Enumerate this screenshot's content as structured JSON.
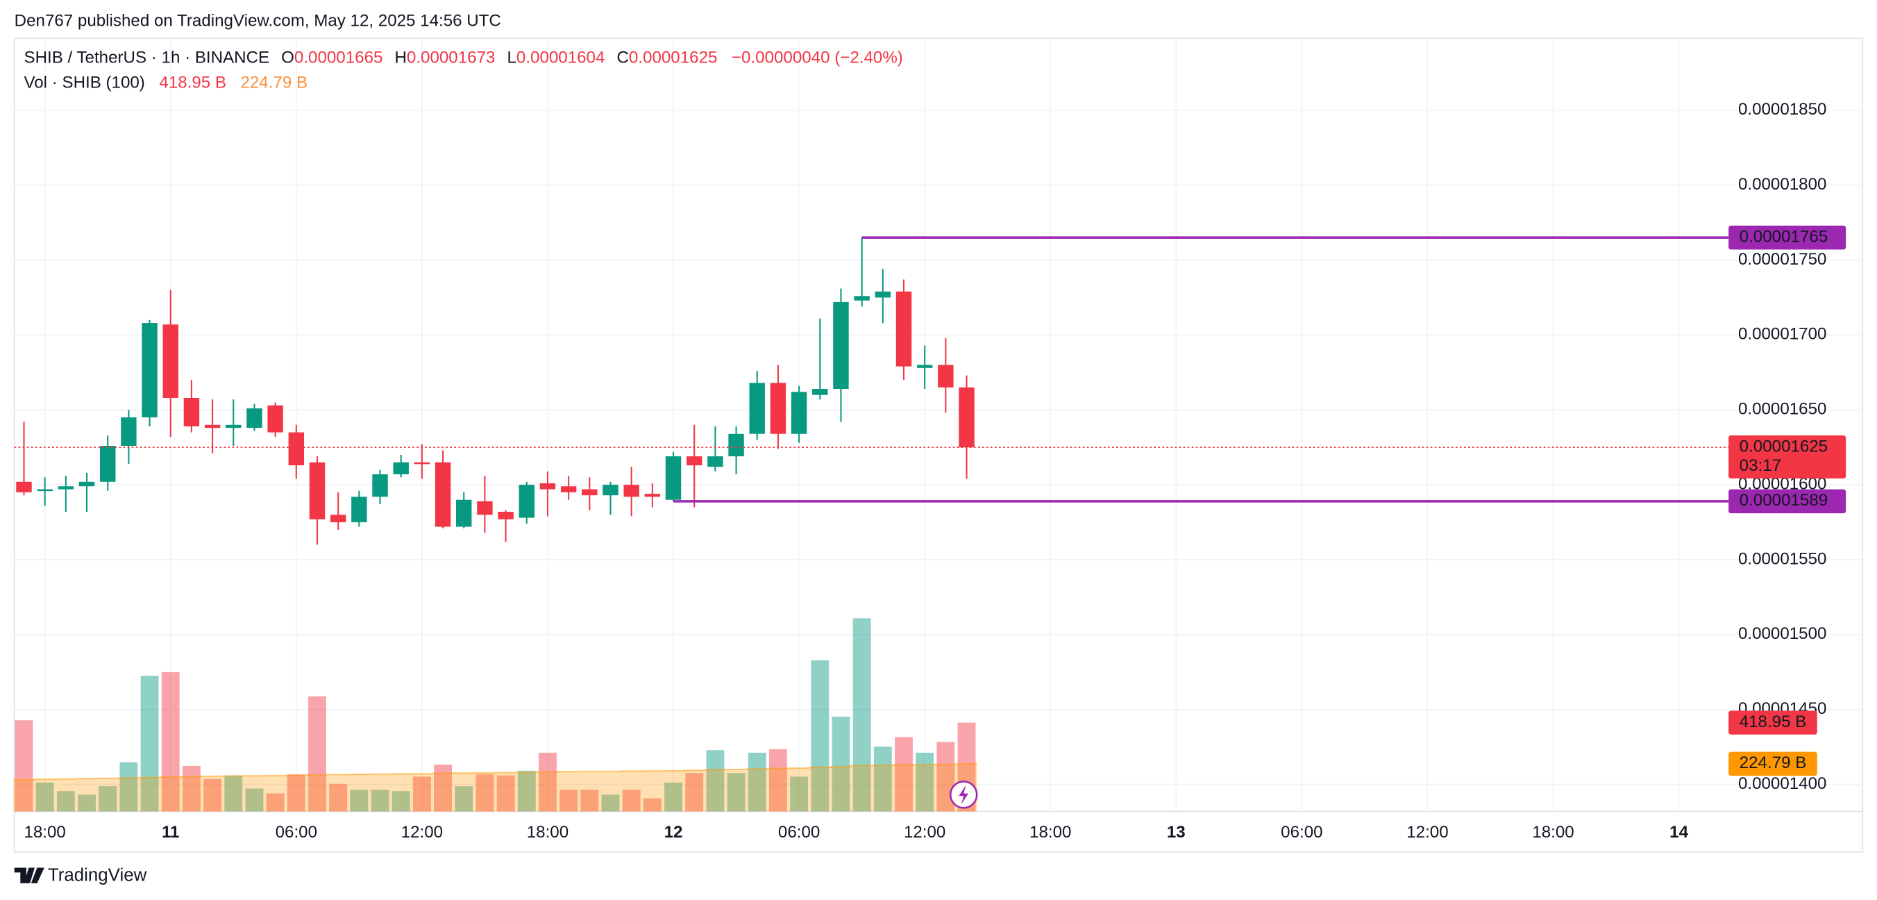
{
  "header": {
    "published": "Den767 published on TradingView.com, May 12, 2025 14:56 UTC"
  },
  "footer": {
    "brand": "TradingView"
  },
  "chart_data": {
    "type": "candlestick",
    "legend": {
      "symbol": "SHIB / TetherUS · 1h · BINANCE",
      "open_label": "O",
      "high_label": "H",
      "low_label": "L",
      "close_label": "C",
      "change": "−0.00000040 (−2.40%)",
      "volume_title": "Vol · SHIB (100)"
    },
    "up_color": "#089981",
    "down_color": "#f23645",
    "ma_color": "#ff9800",
    "line_color": "#9c27b0",
    "grid": true,
    "categories": [
      null,
      "18:00",
      null,
      null,
      null,
      null,
      null,
      "11",
      null,
      null,
      null,
      null,
      null,
      "06:00",
      null,
      null,
      null,
      null,
      null,
      "12:00",
      null,
      null,
      null,
      null,
      null,
      "18:00",
      null,
      null,
      null,
      null,
      null,
      "12",
      null,
      null,
      null,
      null,
      null,
      "06:00",
      null,
      null,
      null,
      null,
      null,
      "12:00",
      null,
      null,
      null,
      null,
      null,
      "18:00",
      null,
      null,
      null,
      null,
      null,
      "13",
      null,
      null,
      null,
      null,
      null,
      "06:00",
      null,
      null,
      null,
      null,
      null,
      "12:00",
      null,
      null,
      null,
      null,
      null,
      "18:00",
      null,
      null,
      null,
      null,
      null,
      "14"
    ],
    "open": [
      1.602e-05,
      1.596e-05,
      1.597e-05,
      1.599e-05,
      1.602e-05,
      1.626e-05,
      1.645e-05,
      1.707e-05,
      1.658e-05,
      1.64e-05,
      1.638e-05,
      1.638e-05,
      1.653e-05,
      1.635e-05,
      1.615e-05,
      1.58e-05,
      1.575e-05,
      1.592e-05,
      1.607e-05,
      1.615e-05,
      1.615e-05,
      1.572e-05,
      1.589e-05,
      1.582e-05,
      1.578e-05,
      1.601e-05,
      1.599e-05,
      1.597e-05,
      1.593e-05,
      1.6e-05,
      1.594e-05,
      1.59e-05,
      1.619e-05,
      1.612e-05,
      1.619e-05,
      1.634e-05,
      1.668e-05,
      1.634e-05,
      1.66e-05,
      1.664e-05,
      1.723e-05,
      1.725e-05,
      1.729e-05,
      1.678e-05,
      1.68e-05,
      1.665e-05,
      null,
      null,
      null,
      null,
      null,
      null,
      null,
      null,
      null,
      null,
      null,
      null,
      null,
      null,
      null,
      null,
      null,
      null,
      null,
      null,
      null,
      null,
      null,
      null,
      null,
      null,
      null,
      null,
      null,
      null,
      null,
      null,
      null,
      null
    ],
    "close": [
      1.595e-05,
      1.597e-05,
      1.599e-05,
      1.602e-05,
      1.626e-05,
      1.645e-05,
      1.708e-05,
      1.658e-05,
      1.639e-05,
      1.638e-05,
      1.64e-05,
      1.651e-05,
      1.635e-05,
      1.613e-05,
      1.577e-05,
      1.575e-05,
      1.592e-05,
      1.607e-05,
      1.615e-05,
      1.614e-05,
      1.572e-05,
      1.59e-05,
      1.58e-05,
      1.577e-05,
      1.6e-05,
      1.597e-05,
      1.595e-05,
      1.593e-05,
      1.6e-05,
      1.592e-05,
      1.592e-05,
      1.619e-05,
      1.613e-05,
      1.619e-05,
      1.634e-05,
      1.668e-05,
      1.634e-05,
      1.662e-05,
      1.664e-05,
      1.722e-05,
      1.726e-05,
      1.729e-05,
      1.679e-05,
      1.68e-05,
      1.665e-05,
      1.625e-05,
      null,
      null,
      null,
      null,
      null,
      null,
      null,
      null,
      null,
      null,
      null,
      null,
      null,
      null,
      null,
      null,
      null,
      null,
      null,
      null,
      null,
      null,
      null,
      null,
      null,
      null,
      null,
      null,
      null,
      null,
      null,
      null,
      null,
      null
    ],
    "high": [
      1.642e-05,
      1.605e-05,
      1.606e-05,
      1.608e-05,
      1.633e-05,
      1.65e-05,
      1.71e-05,
      1.73e-05,
      1.67e-05,
      1.657e-05,
      1.657e-05,
      1.654e-05,
      1.655e-05,
      1.64e-05,
      1.619e-05,
      1.595e-05,
      1.596e-05,
      1.61e-05,
      1.62e-05,
      1.627e-05,
      1.623e-05,
      1.595e-05,
      1.606e-05,
      1.583e-05,
      1.602e-05,
      1.609e-05,
      1.606e-05,
      1.605e-05,
      1.602e-05,
      1.612e-05,
      1.601e-05,
      1.622e-05,
      1.64e-05,
      1.639e-05,
      1.639e-05,
      1.676e-05,
      1.68e-05,
      1.666e-05,
      1.711e-05,
      1.731e-05,
      1.765e-05,
      1.744e-05,
      1.737e-05,
      1.693e-05,
      1.698e-05,
      1.673e-05,
      null,
      null,
      null,
      null,
      null,
      null,
      null,
      null,
      null,
      null,
      null,
      null,
      null,
      null,
      null,
      null,
      null,
      null,
      null,
      null,
      null,
      null,
      null,
      null,
      null,
      null,
      null,
      null,
      null,
      null,
      null,
      null,
      null,
      null
    ],
    "low": [
      1.593e-05,
      1.586e-05,
      1.582e-05,
      1.582e-05,
      1.596e-05,
      1.614e-05,
      1.639e-05,
      1.632e-05,
      1.635e-05,
      1.621e-05,
      1.626e-05,
      1.636e-05,
      1.632e-05,
      1.604e-05,
      1.56e-05,
      1.57e-05,
      1.572e-05,
      1.587e-05,
      1.605e-05,
      1.604e-05,
      1.571e-05,
      1.571e-05,
      1.568e-05,
      1.562e-05,
      1.574e-05,
      1.579e-05,
      1.59e-05,
      1.583e-05,
      1.58e-05,
      1.579e-05,
      1.585e-05,
      1.589e-05,
      1.585e-05,
      1.609e-05,
      1.607e-05,
      1.63e-05,
      1.624e-05,
      1.628e-05,
      1.657e-05,
      1.642e-05,
      1.719e-05,
      1.708e-05,
      1.67e-05,
      1.664e-05,
      1.648e-05,
      1.604e-05,
      null,
      null,
      null,
      null,
      null,
      null,
      null,
      null,
      null,
      null,
      null,
      null,
      null,
      null,
      null,
      null,
      null,
      null,
      null,
      null,
      null,
      null,
      null,
      null,
      null,
      null,
      null,
      null,
      null,
      null,
      null,
      null,
      null,
      null
    ],
    "volume": [
      430,
      136,
      96,
      79,
      119,
      232,
      640,
      657,
      215,
      153,
      170,
      108,
      85,
      175,
      543,
      130,
      102,
      102,
      96,
      164,
      221,
      119,
      175,
      170,
      192,
      277,
      102,
      102,
      79,
      102,
      62,
      136,
      181,
      289,
      181,
      277,
      294,
      164,
      713,
      447,
      911,
      306,
      351,
      277,
      328,
      418.95,
      null,
      null,
      null,
      null,
      null,
      null,
      null,
      null,
      null,
      null,
      null,
      null,
      null,
      null,
      null,
      null,
      null,
      null,
      null,
      null,
      null,
      null,
      null,
      null,
      null,
      null,
      null,
      null,
      null,
      null,
      null,
      null,
      null,
      null
    ],
    "volume_ma": [
      150,
      152,
      153,
      155,
      156,
      158,
      160,
      162,
      165,
      166,
      167,
      168,
      169,
      170,
      173,
      174,
      175,
      176,
      177,
      178,
      180,
      181,
      182,
      183,
      185,
      187,
      188,
      189,
      189,
      190,
      191,
      192,
      194,
      197,
      198,
      200,
      203,
      204,
      208,
      211,
      216,
      218,
      220,
      221,
      222,
      224.79,
      null,
      null,
      null,
      null,
      null,
      null,
      null,
      null,
      null,
      null,
      null,
      null,
      null,
      null,
      null,
      null,
      null,
      null,
      null,
      null,
      null,
      null,
      null,
      null,
      null,
      null,
      null,
      null,
      null,
      null,
      null,
      null,
      null,
      null
    ],
    "volume_value_label": "418.95 B",
    "volume_ma_value_label": "224.79 B",
    "countdown": "03:17",
    "ylim": [
      1.382e-05,
      1.898e-05
    ],
    "yticks": [
      {
        "value": 1.4e-05,
        "label": "0.00001400"
      },
      {
        "value": 1.45e-05,
        "label": "0.00001450"
      },
      {
        "value": 1.5e-05,
        "label": "0.00001500"
      },
      {
        "value": 1.55e-05,
        "label": "0.00001550"
      },
      {
        "value": 1.6e-05,
        "label": "0.00001600"
      },
      {
        "value": 1.65e-05,
        "label": "0.00001650"
      },
      {
        "value": 1.7e-05,
        "label": "0.00001700"
      },
      {
        "value": 1.75e-05,
        "label": "0.00001750"
      },
      {
        "value": 1.8e-05,
        "label": "0.00001800"
      },
      {
        "value": 1.85e-05,
        "label": "0.00001850"
      }
    ],
    "volume_ylim": [
      0,
      1400
    ],
    "lines": [
      {
        "value": 1.765e-05
      },
      {
        "value": 1.589e-05
      }
    ]
  }
}
